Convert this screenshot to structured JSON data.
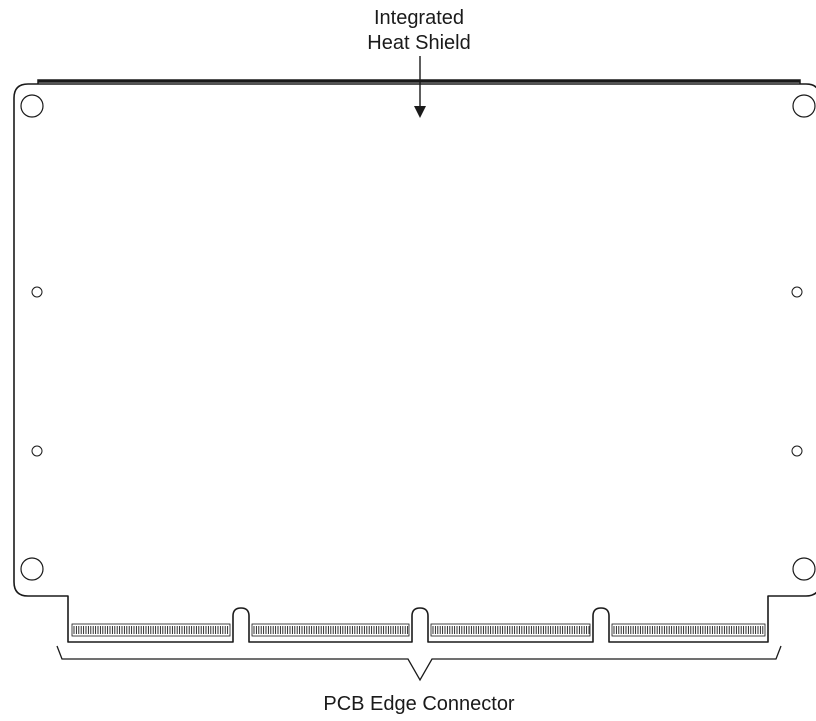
{
  "labels": {
    "heat_shield_line1": "Integrated",
    "heat_shield_line2": "Heat Shield",
    "edge_connector": "PCB Edge Connector"
  },
  "colors": {
    "stroke": "#1a1a1a",
    "background": "#ffffff"
  }
}
